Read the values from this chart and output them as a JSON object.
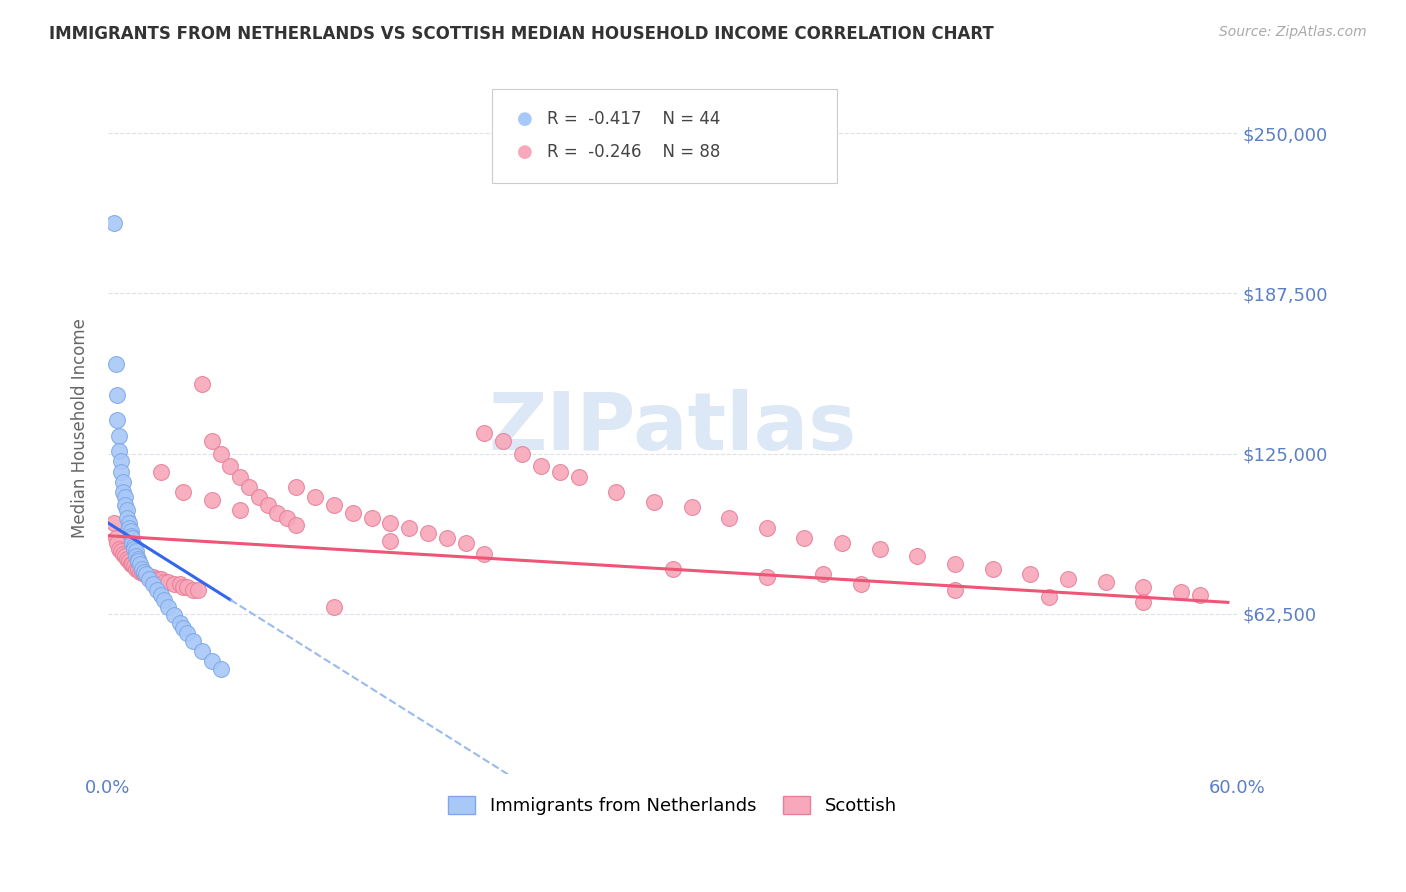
{
  "title": "IMMIGRANTS FROM NETHERLANDS VS SCOTTISH MEDIAN HOUSEHOLD INCOME CORRELATION CHART",
  "source": "Source: ZipAtlas.com",
  "ylabel": "Median Household Income",
  "xlim": [
    0.0,
    0.6
  ],
  "ylim": [
    0,
    270000
  ],
  "yticks": [
    0,
    62500,
    125000,
    187500,
    250000
  ],
  "ytick_labels": [
    "",
    "$62,500",
    "$125,000",
    "$187,500",
    "$250,000"
  ],
  "xtick_positions": [
    0.0,
    0.1,
    0.2,
    0.3,
    0.4,
    0.5,
    0.6
  ],
  "xtick_labels": [
    "0.0%",
    "",
    "",
    "",
    "",
    "",
    "60.0%"
  ],
  "background_color": "#ffffff",
  "grid_color": "#dde0e8",
  "title_color": "#333333",
  "axis_label_color": "#666666",
  "tick_label_color": "#5b7fc7",
  "watermark_text": "ZIPatlas",
  "watermark_color": "#dce8f5",
  "legend_r1": "-0.417",
  "legend_n1": "44",
  "legend_r2": "-0.246",
  "legend_n2": "88",
  "series1_color": "#a8c8f8",
  "series2_color": "#f8a8bb",
  "series1_label": "Immigrants from Netherlands",
  "series2_label": "Scottish",
  "series1_edge": "#80a8e8",
  "series2_edge": "#e88098",
  "trendline1_color": "#3366ee",
  "trendline2_color": "#ee5577",
  "trendline1_dashed_color": "#99bbee",
  "series1_x": [
    0.003,
    0.004,
    0.005,
    0.005,
    0.006,
    0.006,
    0.007,
    0.007,
    0.008,
    0.008,
    0.009,
    0.009,
    0.01,
    0.01,
    0.011,
    0.011,
    0.012,
    0.012,
    0.013,
    0.013,
    0.014,
    0.014,
    0.015,
    0.015,
    0.016,
    0.016,
    0.017,
    0.018,
    0.019,
    0.02,
    0.022,
    0.024,
    0.026,
    0.028,
    0.03,
    0.032,
    0.035,
    0.038,
    0.04,
    0.042,
    0.045,
    0.05,
    0.055,
    0.06
  ],
  "series1_y": [
    215000,
    160000,
    148000,
    138000,
    132000,
    126000,
    122000,
    118000,
    114000,
    110000,
    108000,
    105000,
    103000,
    100000,
    98000,
    96000,
    95000,
    93000,
    92000,
    90000,
    89000,
    88000,
    87000,
    85000,
    84000,
    83000,
    82000,
    80000,
    79000,
    78000,
    76000,
    74000,
    72000,
    70000,
    68000,
    65000,
    62000,
    59000,
    57000,
    55000,
    52000,
    48000,
    44000,
    41000
  ],
  "series2_x": [
    0.003,
    0.004,
    0.005,
    0.006,
    0.007,
    0.008,
    0.009,
    0.01,
    0.011,
    0.012,
    0.013,
    0.014,
    0.015,
    0.016,
    0.017,
    0.018,
    0.019,
    0.02,
    0.022,
    0.024,
    0.026,
    0.028,
    0.03,
    0.032,
    0.035,
    0.038,
    0.04,
    0.042,
    0.045,
    0.048,
    0.05,
    0.055,
    0.06,
    0.065,
    0.07,
    0.075,
    0.08,
    0.085,
    0.09,
    0.095,
    0.1,
    0.11,
    0.12,
    0.13,
    0.14,
    0.15,
    0.16,
    0.17,
    0.18,
    0.19,
    0.2,
    0.21,
    0.22,
    0.23,
    0.24,
    0.25,
    0.27,
    0.29,
    0.31,
    0.33,
    0.35,
    0.37,
    0.39,
    0.41,
    0.43,
    0.45,
    0.47,
    0.49,
    0.51,
    0.53,
    0.55,
    0.57,
    0.58,
    0.028,
    0.04,
    0.055,
    0.07,
    0.1,
    0.15,
    0.2,
    0.3,
    0.35,
    0.4,
    0.45,
    0.5,
    0.55,
    0.12,
    0.38
  ],
  "series2_y": [
    98000,
    92000,
    90000,
    88000,
    87000,
    86000,
    85000,
    84000,
    83000,
    82000,
    82000,
    81000,
    80000,
    80000,
    79000,
    79000,
    78000,
    78000,
    77000,
    77000,
    76000,
    76000,
    75000,
    75000,
    74000,
    74000,
    73000,
    73000,
    72000,
    72000,
    152000,
    130000,
    125000,
    120000,
    116000,
    112000,
    108000,
    105000,
    102000,
    100000,
    112000,
    108000,
    105000,
    102000,
    100000,
    98000,
    96000,
    94000,
    92000,
    90000,
    133000,
    130000,
    125000,
    120000,
    118000,
    116000,
    110000,
    106000,
    104000,
    100000,
    96000,
    92000,
    90000,
    88000,
    85000,
    82000,
    80000,
    78000,
    76000,
    75000,
    73000,
    71000,
    70000,
    118000,
    110000,
    107000,
    103000,
    97000,
    91000,
    86000,
    80000,
    77000,
    74000,
    72000,
    69000,
    67000,
    65000,
    78000
  ]
}
